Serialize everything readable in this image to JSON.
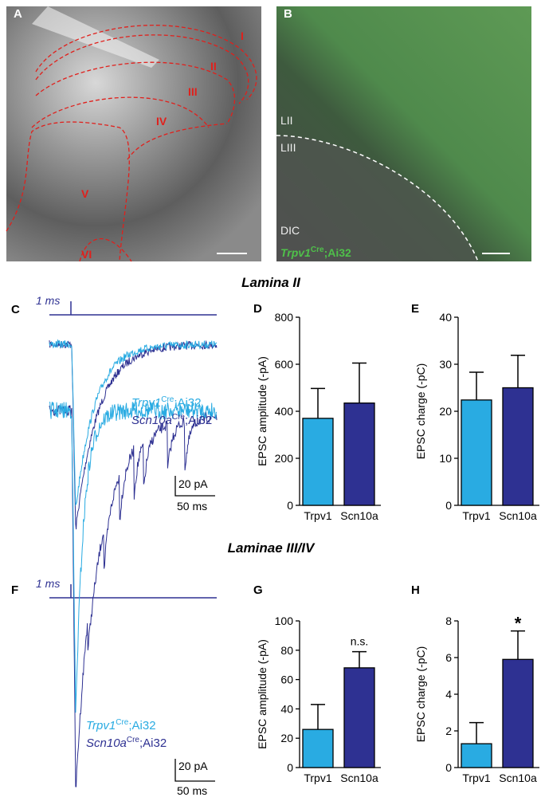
{
  "panel_labels": [
    "A",
    "B",
    "C",
    "D",
    "E",
    "F",
    "G",
    "H"
  ],
  "image_a": {
    "regions": [
      "I",
      "II",
      "III",
      "IV",
      "V",
      "VI"
    ]
  },
  "image_b": {
    "layers": [
      "LII",
      "LIII",
      "DIC"
    ],
    "genotype": {
      "gene": "Trpv1",
      "superscript": "Cre",
      "suffix": ";Ai32"
    }
  },
  "sections": [
    "Lamina II",
    "Laminae III/IV"
  ],
  "traces": [
    {
      "stimulus": "1 ms",
      "scale_y": "20 pA",
      "scale_x": "50 ms",
      "legend": [
        {
          "gene": "Trpv1",
          "superscript": "Cre",
          "suffix": ";Ai32"
        },
        {
          "gene": "Scn10a",
          "superscript": "Cre",
          "suffix": ";Ai32"
        }
      ]
    },
    {
      "stimulus": "1 ms",
      "scale_y": "20 pA",
      "scale_x": "50 ms",
      "legend": [
        {
          "gene": "Trpv1",
          "superscript": "Cre",
          "suffix": ";Ai32"
        },
        {
          "gene": "Scn10a",
          "superscript": "Cre",
          "suffix": ";Ai32"
        }
      ]
    }
  ],
  "chart_data": [
    {
      "type": "bar",
      "ylabel": "EPSC amplitude (-pA)",
      "categories": [
        "Trpv1",
        "Scn10a"
      ],
      "values": [
        370,
        435
      ],
      "errors": [
        127,
        170
      ],
      "colors": [
        "#29abe2",
        "#2e3192"
      ],
      "ylim": [
        0,
        800
      ],
      "yticks": [
        0,
        200,
        400,
        600,
        800
      ]
    },
    {
      "type": "bar",
      "ylabel": "EPSC charge (-pC)",
      "categories": [
        "Trpv1",
        "Scn10a"
      ],
      "values": [
        22.4,
        25
      ],
      "errors": [
        5.9,
        6.9
      ],
      "colors": [
        "#29abe2",
        "#2e3192"
      ],
      "ylim": [
        0,
        40
      ],
      "yticks": [
        0,
        10,
        20,
        30,
        40
      ]
    },
    {
      "type": "bar",
      "ylabel": "EPSC amplitude (-pA)",
      "categories": [
        "Trpv1",
        "Scn10a"
      ],
      "values": [
        26,
        68
      ],
      "errors": [
        17,
        11
      ],
      "colors": [
        "#29abe2",
        "#2e3192"
      ],
      "ylim": [
        0,
        100
      ],
      "yticks": [
        0,
        20,
        40,
        60,
        80,
        100
      ],
      "annotations": [
        null,
        "n.s."
      ]
    },
    {
      "type": "bar",
      "ylabel": "EPSC charge (-pC)",
      "categories": [
        "Trpv1",
        "Scn10a"
      ],
      "values": [
        1.3,
        5.9
      ],
      "errors": [
        1.15,
        1.55
      ],
      "colors": [
        "#29abe2",
        "#2e3192"
      ],
      "ylim": [
        0,
        8
      ],
      "yticks": [
        0,
        2,
        4,
        6,
        8
      ],
      "annotations": [
        null,
        "*"
      ]
    }
  ]
}
